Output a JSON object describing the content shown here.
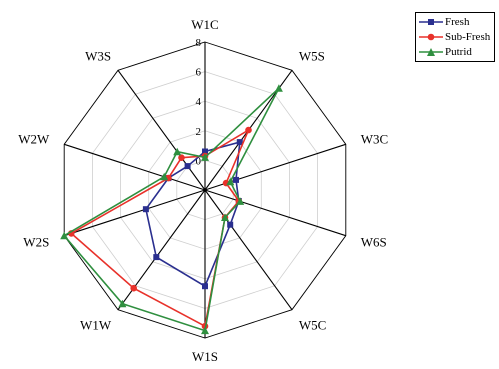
{
  "chart_data": {
    "type": "radar",
    "title": "",
    "axes": [
      "W1C",
      "W5S",
      "W3C",
      "W6S",
      "W5C",
      "W1S",
      "W1W",
      "W2S",
      "W2W",
      "W3S"
    ],
    "range": [
      -2,
      8
    ],
    "ticks": [
      0,
      2,
      4,
      6,
      8
    ],
    "grid": true,
    "legend_position": "top-right",
    "series": [
      {
        "name": "Fresh",
        "color": "#2a2f8f",
        "marker": "square",
        "values": [
          0.6,
          2.0,
          0.2,
          0.4,
          0.9,
          4.5,
          3.6,
          2.2,
          0.6,
          0.0
        ]
      },
      {
        "name": "Sub-Fresh",
        "color": "#e8312a",
        "marker": "circle",
        "values": [
          0.3,
          3.0,
          -0.5,
          0.4,
          0.3,
          7.2,
          6.2,
          7.5,
          0.6,
          0.7
        ]
      },
      {
        "name": "Putrid",
        "color": "#2f8f3f",
        "marker": "triangle",
        "values": [
          0.2,
          6.5,
          -0.2,
          0.5,
          0.3,
          7.5,
          7.5,
          8.0,
          0.9,
          1.2
        ]
      }
    ]
  }
}
